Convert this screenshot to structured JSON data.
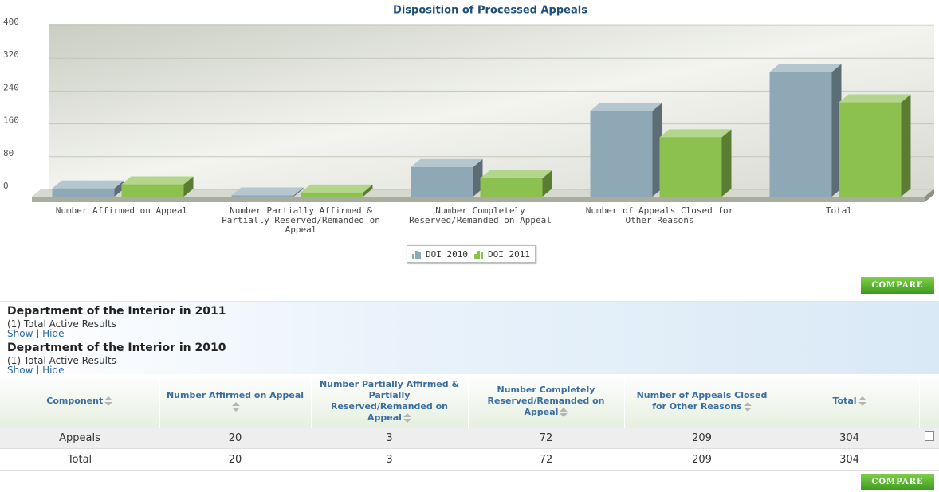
{
  "chart_data": {
    "type": "bar",
    "title": "Disposition of Processed Appeals",
    "categories": [
      "Number Affirmed on Appeal",
      "Number Partially Affirmed & Partially Reserved/Remanded on Appeal",
      "Number Completely Reserved/Remanded on Appeal",
      "Number of Appeals Closed for Other Reasons",
      "Total"
    ],
    "series": [
      {
        "name": "DOI 2010",
        "color": "#8fa8b6",
        "values": [
          20,
          3,
          72,
          209,
          304
        ]
      },
      {
        "name": "DOI 2011",
        "color": "#8cc04f",
        "values": [
          30,
          10,
          45,
          145,
          230
        ]
      }
    ],
    "ylim": [
      0,
      400
    ],
    "yticks": [
      0,
      80,
      160,
      240,
      320,
      400
    ],
    "grid": true,
    "legend": "bottom"
  },
  "compare_button": "COMPARE",
  "sections": [
    {
      "title": "Department of the Interior in 2011",
      "results": "(1) Total Active Results",
      "show": "Show",
      "separator": "|",
      "hide": "Hide"
    },
    {
      "title": "Department of the Interior in 2010",
      "results": "(1) Total Active Results",
      "show": "Show",
      "separator": "|",
      "hide": "Hide"
    }
  ],
  "table": {
    "columns": [
      "Component",
      "Number Affirmed on Appeal",
      "Number Partially Affirmed & Partially Reserved/Remanded on Appeal",
      "Number Completely Reserved/Remanded on Appeal",
      "Number of Appeals Closed for Other Reasons",
      "Total"
    ],
    "rows": [
      [
        "Appeals",
        "20",
        "3",
        "72",
        "209",
        "304"
      ],
      [
        "Total",
        "20",
        "3",
        "72",
        "209",
        "304"
      ]
    ]
  }
}
